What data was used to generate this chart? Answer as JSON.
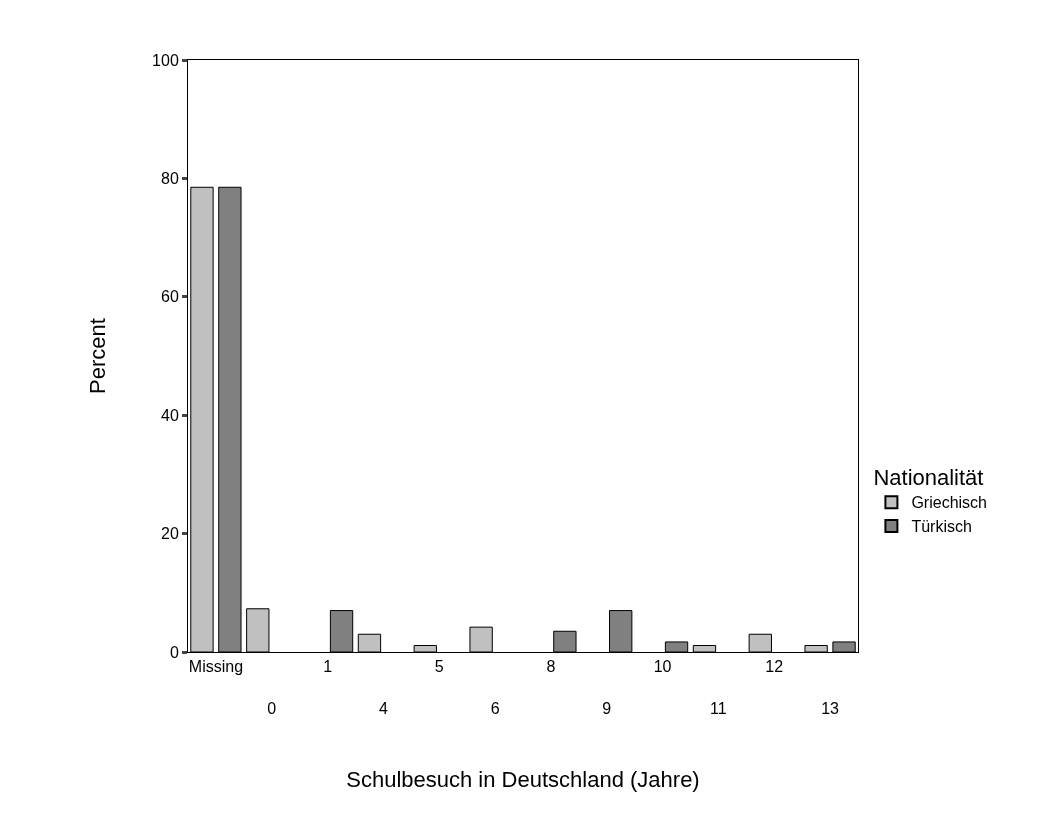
{
  "chart_data": {
    "type": "bar",
    "xlabel": "Schulbesuch in Deutschland (Jahre)",
    "ylabel": "Percent",
    "legend_title": "Nationalität",
    "categories": [
      "Missing",
      "0",
      "1",
      "4",
      "5",
      "6",
      "8",
      "9",
      "10",
      "11",
      "12",
      "13"
    ],
    "series": [
      {
        "name": "Griechisch",
        "color": "#c0c0c0",
        "values": [
          78.5,
          7.3,
          null,
          3.0,
          1.1,
          4.2,
          null,
          null,
          null,
          1.1,
          3.0,
          1.1
        ]
      },
      {
        "name": "Türkisch",
        "color": "#808080",
        "values": [
          78.5,
          null,
          7.0,
          null,
          null,
          null,
          3.5,
          7.0,
          1.7,
          null,
          null,
          1.7
        ]
      }
    ],
    "ylim": [
      0,
      100
    ],
    "yticks": [
      0,
      20,
      40,
      60,
      80,
      100
    ],
    "legend": "right"
  }
}
